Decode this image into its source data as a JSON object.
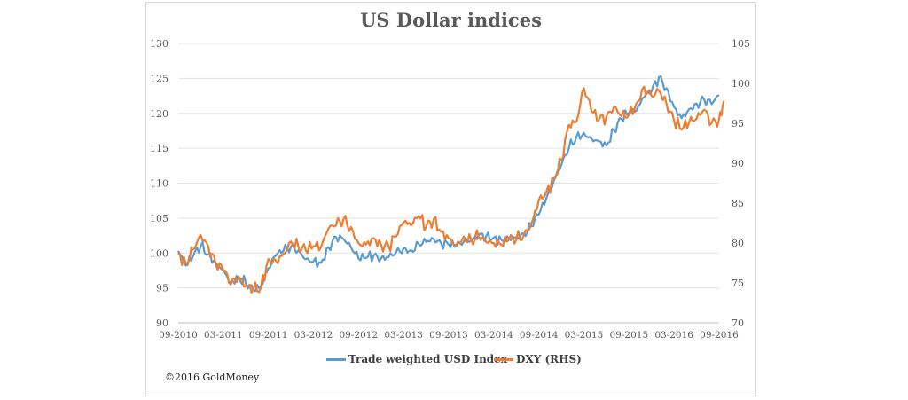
{
  "copyright": "©2016 GoldMoney",
  "chart_data": {
    "type": "line",
    "title": "US Dollar indices",
    "x_tick_labels": [
      "09-2010",
      "03-2011",
      "09-2011",
      "03-2012",
      "09-2012",
      "03-2013",
      "09-2013",
      "03-2014",
      "09-2014",
      "03-2015",
      "09-2015",
      "03-2016",
      "09-2016"
    ],
    "y_left": {
      "ylim": [
        90,
        130
      ],
      "ticks": [
        90,
        95,
        100,
        105,
        110,
        115,
        120,
        125,
        130
      ]
    },
    "y_right": {
      "ylim": [
        70,
        105
      ],
      "ticks": [
        70,
        75,
        80,
        85,
        90,
        95,
        100,
        105
      ]
    },
    "grid": "horizontal",
    "legend_placement": "bottom",
    "series": [
      {
        "name": "Trade weighted USD Index",
        "axis": "left",
        "color": "#5b9bd5",
        "points": [
          [
            "2010-09",
            100.3
          ],
          [
            "2010-10",
            98.2
          ],
          [
            "2010-11",
            99.6
          ],
          [
            "2010-12",
            101.0
          ],
          [
            "2011-01",
            99.8
          ],
          [
            "2011-02",
            98.6
          ],
          [
            "2011-03",
            97.6
          ],
          [
            "2011-04",
            95.8
          ],
          [
            "2011-05",
            96.6
          ],
          [
            "2011-06",
            95.6
          ],
          [
            "2011-07",
            94.7
          ],
          [
            "2011-08",
            95.2
          ],
          [
            "2011-09",
            97.8
          ],
          [
            "2011-10",
            99.6
          ],
          [
            "2011-11",
            100.3
          ],
          [
            "2011-12",
            100.9
          ],
          [
            "2012-01",
            100.4
          ],
          [
            "2012-02",
            99.1
          ],
          [
            "2012-03",
            98.8
          ],
          [
            "2012-04",
            98.6
          ],
          [
            "2012-05",
            100.8
          ],
          [
            "2012-06",
            102.3
          ],
          [
            "2012-07",
            102.0
          ],
          [
            "2012-08",
            100.8
          ],
          [
            "2012-09",
            99.2
          ],
          [
            "2012-10",
            99.3
          ],
          [
            "2012-11",
            99.6
          ],
          [
            "2012-12",
            99.2
          ],
          [
            "2013-01",
            99.4
          ],
          [
            "2013-02",
            100.1
          ],
          [
            "2013-03",
            100.7
          ],
          [
            "2013-04",
            100.4
          ],
          [
            "2013-05",
            101.3
          ],
          [
            "2013-06",
            101.6
          ],
          [
            "2013-07",
            102.0
          ],
          [
            "2013-08",
            101.4
          ],
          [
            "2013-09",
            101.2
          ],
          [
            "2013-10",
            100.9
          ],
          [
            "2013-11",
            101.6
          ],
          [
            "2013-12",
            101.8
          ],
          [
            "2014-01",
            102.6
          ],
          [
            "2014-02",
            102.4
          ],
          [
            "2014-03",
            102.2
          ],
          [
            "2014-04",
            101.9
          ],
          [
            "2014-05",
            102.1
          ],
          [
            "2014-06",
            102.3
          ],
          [
            "2014-07",
            102.7
          ],
          [
            "2014-08",
            103.8
          ],
          [
            "2014-09",
            105.5
          ],
          [
            "2014-10",
            107.8
          ],
          [
            "2014-11",
            110.4
          ],
          [
            "2014-12",
            112.6
          ],
          [
            "2015-01",
            115.0
          ],
          [
            "2015-02",
            116.6
          ],
          [
            "2015-03",
            117.2
          ],
          [
            "2015-04",
            116.4
          ],
          [
            "2015-05",
            116.0
          ],
          [
            "2015-06",
            115.4
          ],
          [
            "2015-07",
            117.6
          ],
          [
            "2015-08",
            119.2
          ],
          [
            "2015-09",
            120.1
          ],
          [
            "2015-10",
            120.4
          ],
          [
            "2015-11",
            122.3
          ],
          [
            "2015-12",
            123.1
          ],
          [
            "2016-01",
            125.2
          ],
          [
            "2016-02",
            123.6
          ],
          [
            "2016-03",
            120.9
          ],
          [
            "2016-04",
            119.3
          ],
          [
            "2016-05",
            120.6
          ],
          [
            "2016-06",
            121.4
          ],
          [
            "2016-07",
            122.0
          ],
          [
            "2016-08",
            121.3
          ],
          [
            "2016-09",
            122.6
          ]
        ]
      },
      {
        "name": "DXY (RHS)",
        "axis": "right",
        "color": "#ed7d31",
        "points": [
          [
            "2010-09",
            78.8
          ],
          [
            "2010-10",
            77.4
          ],
          [
            "2010-11",
            79.2
          ],
          [
            "2010-12",
            81.0
          ],
          [
            "2011-01",
            79.6
          ],
          [
            "2011-02",
            77.3
          ],
          [
            "2011-03",
            76.6
          ],
          [
            "2011-04",
            74.8
          ],
          [
            "2011-05",
            75.8
          ],
          [
            "2011-06",
            74.6
          ],
          [
            "2011-07",
            74.2
          ],
          [
            "2011-08",
            74.4
          ],
          [
            "2011-09",
            78.0
          ],
          [
            "2011-10",
            77.8
          ],
          [
            "2011-11",
            78.6
          ],
          [
            "2011-12",
            80.2
          ],
          [
            "2012-01",
            79.5
          ],
          [
            "2012-02",
            79.0
          ],
          [
            "2012-03",
            79.6
          ],
          [
            "2012-04",
            79.5
          ],
          [
            "2012-05",
            81.8
          ],
          [
            "2012-06",
            82.2
          ],
          [
            "2012-07",
            83.0
          ],
          [
            "2012-08",
            82.0
          ],
          [
            "2012-09",
            80.0
          ],
          [
            "2012-10",
            79.8
          ],
          [
            "2012-11",
            80.6
          ],
          [
            "2012-12",
            79.8
          ],
          [
            "2013-01",
            79.6
          ],
          [
            "2013-02",
            80.8
          ],
          [
            "2013-03",
            82.6
          ],
          [
            "2013-04",
            82.2
          ],
          [
            "2013-05",
            83.4
          ],
          [
            "2013-06",
            82.0
          ],
          [
            "2013-07",
            83.0
          ],
          [
            "2013-08",
            81.4
          ],
          [
            "2013-09",
            80.6
          ],
          [
            "2013-10",
            79.8
          ],
          [
            "2013-11",
            80.8
          ],
          [
            "2013-12",
            80.4
          ],
          [
            "2014-01",
            80.8
          ],
          [
            "2014-02",
            80.1
          ],
          [
            "2014-03",
            80.0
          ],
          [
            "2014-04",
            79.8
          ],
          [
            "2014-05",
            80.4
          ],
          [
            "2014-06",
            80.4
          ],
          [
            "2014-07",
            81.0
          ],
          [
            "2014-08",
            82.4
          ],
          [
            "2014-09",
            85.4
          ],
          [
            "2014-10",
            86.4
          ],
          [
            "2014-11",
            88.1
          ],
          [
            "2014-12",
            90.4
          ],
          [
            "2015-01",
            94.8
          ],
          [
            "2015-02",
            95.2
          ],
          [
            "2015-03",
            99.4
          ],
          [
            "2015-04",
            96.5
          ],
          [
            "2015-05",
            95.4
          ],
          [
            "2015-06",
            95.8
          ],
          [
            "2015-07",
            97.1
          ],
          [
            "2015-08",
            95.9
          ],
          [
            "2015-09",
            96.1
          ],
          [
            "2015-10",
            97.5
          ],
          [
            "2015-11",
            99.6
          ],
          [
            "2015-12",
            98.4
          ],
          [
            "2016-01",
            99.1
          ],
          [
            "2016-02",
            97.4
          ],
          [
            "2016-03",
            95.3
          ],
          [
            "2016-04",
            94.2
          ],
          [
            "2016-05",
            95.1
          ],
          [
            "2016-06",
            95.6
          ],
          [
            "2016-07",
            96.7
          ],
          [
            "2016-08",
            95.0
          ],
          [
            "2016-09",
            95.6
          ],
          [
            "2016-09-20",
            97.8
          ]
        ]
      }
    ]
  }
}
